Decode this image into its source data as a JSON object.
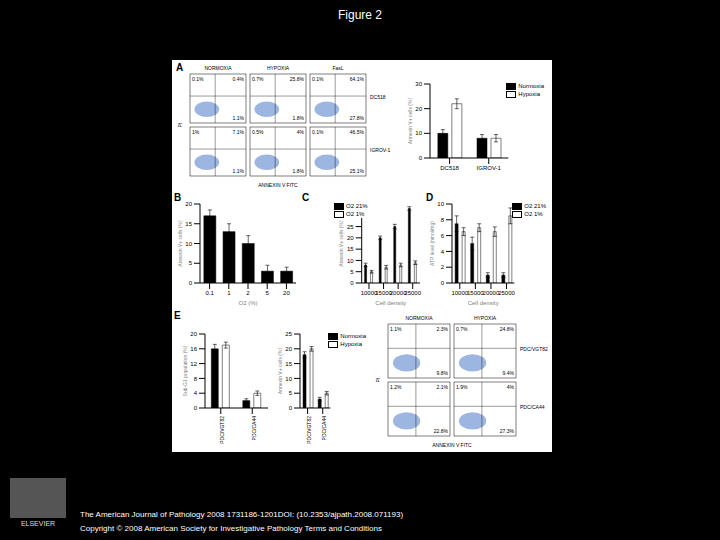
{
  "title": "Figure 2",
  "footer": [
    "The American Journal of Pathology 2008 1731186-1201DOI: (10.2353/ajpath.2008.071193)",
    "Copyright © 2008 American Society for Investigative Pathology Terms and Conditions"
  ],
  "publisher": "ELSEVIER",
  "flow_panels": [
    {
      "title": "A",
      "columns": [
        "NORMOXIA",
        "HYPOXIA",
        "FasL"
      ],
      "rows": [
        "DC518",
        "IGROV-1"
      ],
      "x_label": "ANNEXIN V FITC",
      "y_label": "PI",
      "quadrants": [
        [
          [
            "0.1%",
            "0.4%",
            "1.1%"
          ],
          [
            "0.7%",
            "25.8%",
            "1.8%"
          ],
          [
            "0.1%",
            "64.1%",
            "27.8%"
          ]
        ],
        [
          [
            "1%",
            "7.1%",
            "1.1%"
          ],
          [
            "0.5%",
            "4%",
            "1.8%"
          ],
          [
            "0.1%",
            "46.5%",
            "25.1%"
          ]
        ]
      ]
    },
    {
      "title": "E",
      "columns": [
        "NORMOXIA",
        "HYPOXIA"
      ],
      "rows": [
        "PDC/VGT82",
        "PDC/CA44"
      ],
      "x_label": "ANNEXIN V FITC",
      "y_label": "PI",
      "quadrants": [
        [
          [
            "1.1%",
            "2.3%",
            "9.8%"
          ],
          [
            "0.7%",
            "24.8%",
            "9.4%"
          ]
        ],
        [
          [
            "1.2%",
            "2.1%",
            "22.8%"
          ],
          [
            "1.9%",
            "4%",
            "27.3%"
          ]
        ]
      ]
    }
  ],
  "chart_data": [
    {
      "type": "bar",
      "categories": [
        "DC518",
        "IGROV-1"
      ],
      "y_label": "Annexin V+ cells (%)",
      "ylim": [
        0,
        30
      ],
      "yticks": [
        0,
        10,
        20,
        30
      ],
      "legend": "upper right",
      "series": [
        {
          "name": "Normoxia",
          "color": "#000000",
          "values": [
            10,
            8
          ],
          "errors": [
            1.5,
            1.5
          ]
        },
        {
          "name": "Hypoxia",
          "color": "#ffffff",
          "values": [
            22,
            8
          ],
          "errors": [
            2,
            1.5
          ]
        }
      ]
    },
    {
      "type": "bar",
      "title": "B",
      "categories": [
        "0.1",
        "1",
        "2",
        "5",
        "20"
      ],
      "x_label": "O2 (%)",
      "y_label": "Annexin V+ cells (%)",
      "ylim": [
        0,
        20
      ],
      "yticks": [
        0,
        5,
        10,
        15,
        20
      ],
      "values": [
        17,
        13,
        10,
        3,
        3
      ],
      "errors": [
        1.5,
        2,
        2,
        1.5,
        1
      ],
      "color": "#000000"
    },
    {
      "type": "bar",
      "title": "C",
      "categories": [
        "10000",
        "15000",
        "20000",
        "25000"
      ],
      "x_label": "Cell density",
      "y_label": "Annexin V+ cells (%)",
      "ylim": [
        0,
        35
      ],
      "yticks": [
        0,
        5,
        10,
        15,
        20,
        25,
        30,
        35
      ],
      "legend": "upper left",
      "series": [
        {
          "name": "O2 21%",
          "color": "#000000",
          "values": [
            8,
            20,
            25,
            33
          ],
          "errors": [
            0.8,
            0.8,
            1,
            0.8
          ]
        },
        {
          "name": "O2 1%",
          "color": "#ffffff",
          "values": [
            5,
            7,
            8,
            9
          ],
          "errors": [
            0.6,
            0.8,
            0.8,
            0.8
          ]
        }
      ]
    },
    {
      "type": "bar",
      "title": "D",
      "categories": [
        "10000",
        "15000",
        "20000",
        "25000"
      ],
      "x_label": "Cell density",
      "y_label": "ATP level (nmol/mg)",
      "ylim": [
        0,
        10
      ],
      "yticks": [
        0,
        2,
        4,
        6,
        8,
        10
      ],
      "legend": "upper right",
      "series": [
        {
          "name": "O2 21%",
          "color": "#000000",
          "values": [
            7.5,
            5,
            1,
            1
          ],
          "errors": [
            1,
            0.8,
            0.3,
            0.3
          ]
        },
        {
          "name": "O2 1%",
          "color": "#ffffff",
          "values": [
            6.5,
            7,
            6.5,
            8.5
          ],
          "errors": [
            0.5,
            0.5,
            0.6,
            1
          ]
        }
      ]
    },
    {
      "type": "bar",
      "categories": [
        "PDC/VGT82",
        "PDC/CA44"
      ],
      "y_label": "Sub-G1 population (%)",
      "ylim": [
        0,
        20
      ],
      "yticks": [
        0,
        4,
        8,
        12,
        16,
        20
      ],
      "series": [
        {
          "name": "Normoxia",
          "color": "#000000",
          "values": [
            16,
            2
          ],
          "errors": [
            1.2,
            0.5
          ]
        },
        {
          "name": "Hypoxia",
          "color": "#ffffff",
          "values": [
            17,
            4
          ],
          "errors": [
            0.8,
            0.6
          ]
        }
      ]
    },
    {
      "type": "bar",
      "categories": [
        "PDC/VGT82",
        "PDC/CA44"
      ],
      "y_label": "Annexin V+ cells (%)",
      "ylim": [
        0,
        25
      ],
      "yticks": [
        0,
        5,
        10,
        15,
        20,
        25
      ],
      "legend": "upper right",
      "series": [
        {
          "name": "Normoxia",
          "color": "#000000",
          "values": [
            18,
            3
          ],
          "errors": [
            1,
            0.6
          ]
        },
        {
          "name": "Hypoxia",
          "color": "#ffffff",
          "values": [
            20,
            5
          ],
          "errors": [
            0.8,
            0.6
          ]
        }
      ]
    }
  ]
}
